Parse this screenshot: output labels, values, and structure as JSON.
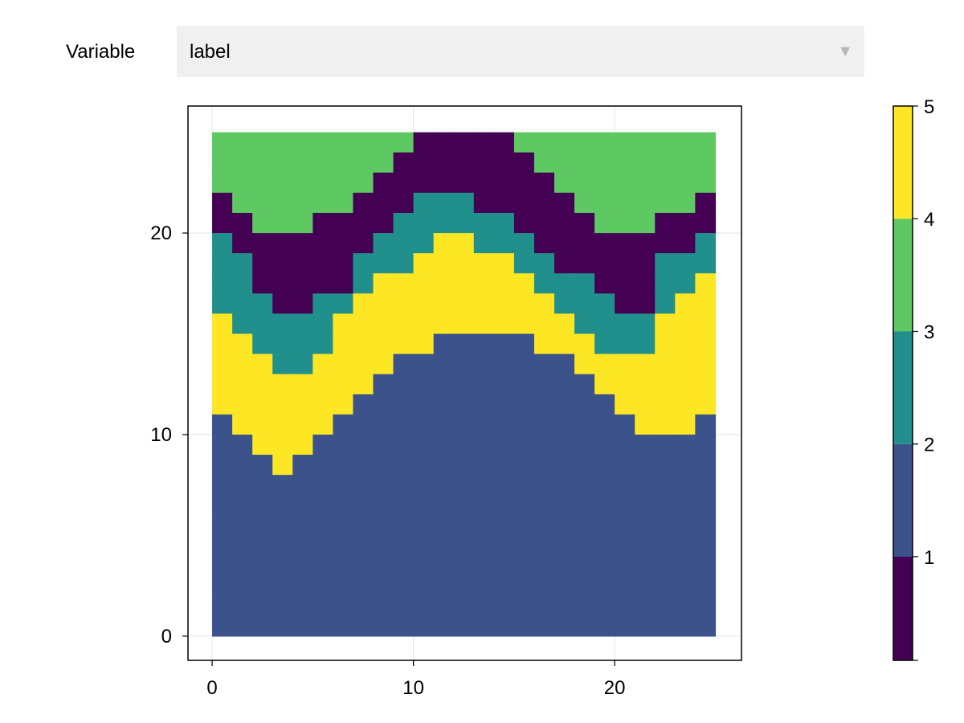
{
  "controls": {
    "variable_label": "Variable",
    "selected_value": "label",
    "arrow_icon": "triangle-down-icon"
  },
  "colors": {
    "class_colors": [
      "#440154",
      "#3b528b",
      "#21908c",
      "#5ec962",
      "#fde725"
    ],
    "frame": "#000000",
    "grid": "#e4e4e4",
    "dropdown_bg": "#f0f0f0"
  },
  "chart_data": {
    "type": "heatmap",
    "title": "",
    "xlabel": "",
    "ylabel": "",
    "grid": true,
    "x_range": [
      0,
      25
    ],
    "y_range": [
      0,
      25
    ],
    "xlim": [
      -1.2,
      26.3
    ],
    "ylim": [
      -1.2,
      26.3
    ],
    "x_ticks": [
      0,
      10,
      20
    ],
    "y_ticks": [
      0,
      10,
      20
    ],
    "x_tick_labels": [
      "0",
      "10",
      "20"
    ],
    "y_tick_labels": [
      "0",
      "10",
      "20"
    ],
    "values_encoding": "Each row string lists the class (1-5) of each column cell, left to right, for x from 0 to 25.",
    "rows_top_to_bottom": [
      "4444444444111114444444444",
      "4444444441111111444444444",
      "4444444411111111144444444",
      "1444444111333111114444441",
      "1144411113333331111444111",
      "3111111133355333111111113",
      "3311111333555553311111333",
      "3311111355555555333111335",
      "3331133555555555533311355",
      "5333335555555555553333555",
      "5533335555522222555333555",
      "5553355552222222225555555",
      "5555555522222222222555555",
      "5555555222222222222255555",
      "2555552222222222222225552",
      "2255522222222222222222222",
      "2225222222222222222222222",
      "2222222222222222222222222",
      "2222222222222222222222222",
      "2222222222222222222222222",
      "2222222222222222222222222",
      "2222222222222222222222222",
      "2222222222222222222222222",
      "2222222222222222222222222",
      "2222222222222222222222222"
    ],
    "colorbar": {
      "ticks": [
        "1",
        "2",
        "3",
        "4",
        "5"
      ],
      "tick_values": [
        1,
        2,
        3,
        4,
        5
      ],
      "range": [
        0.08,
        5
      ]
    }
  }
}
